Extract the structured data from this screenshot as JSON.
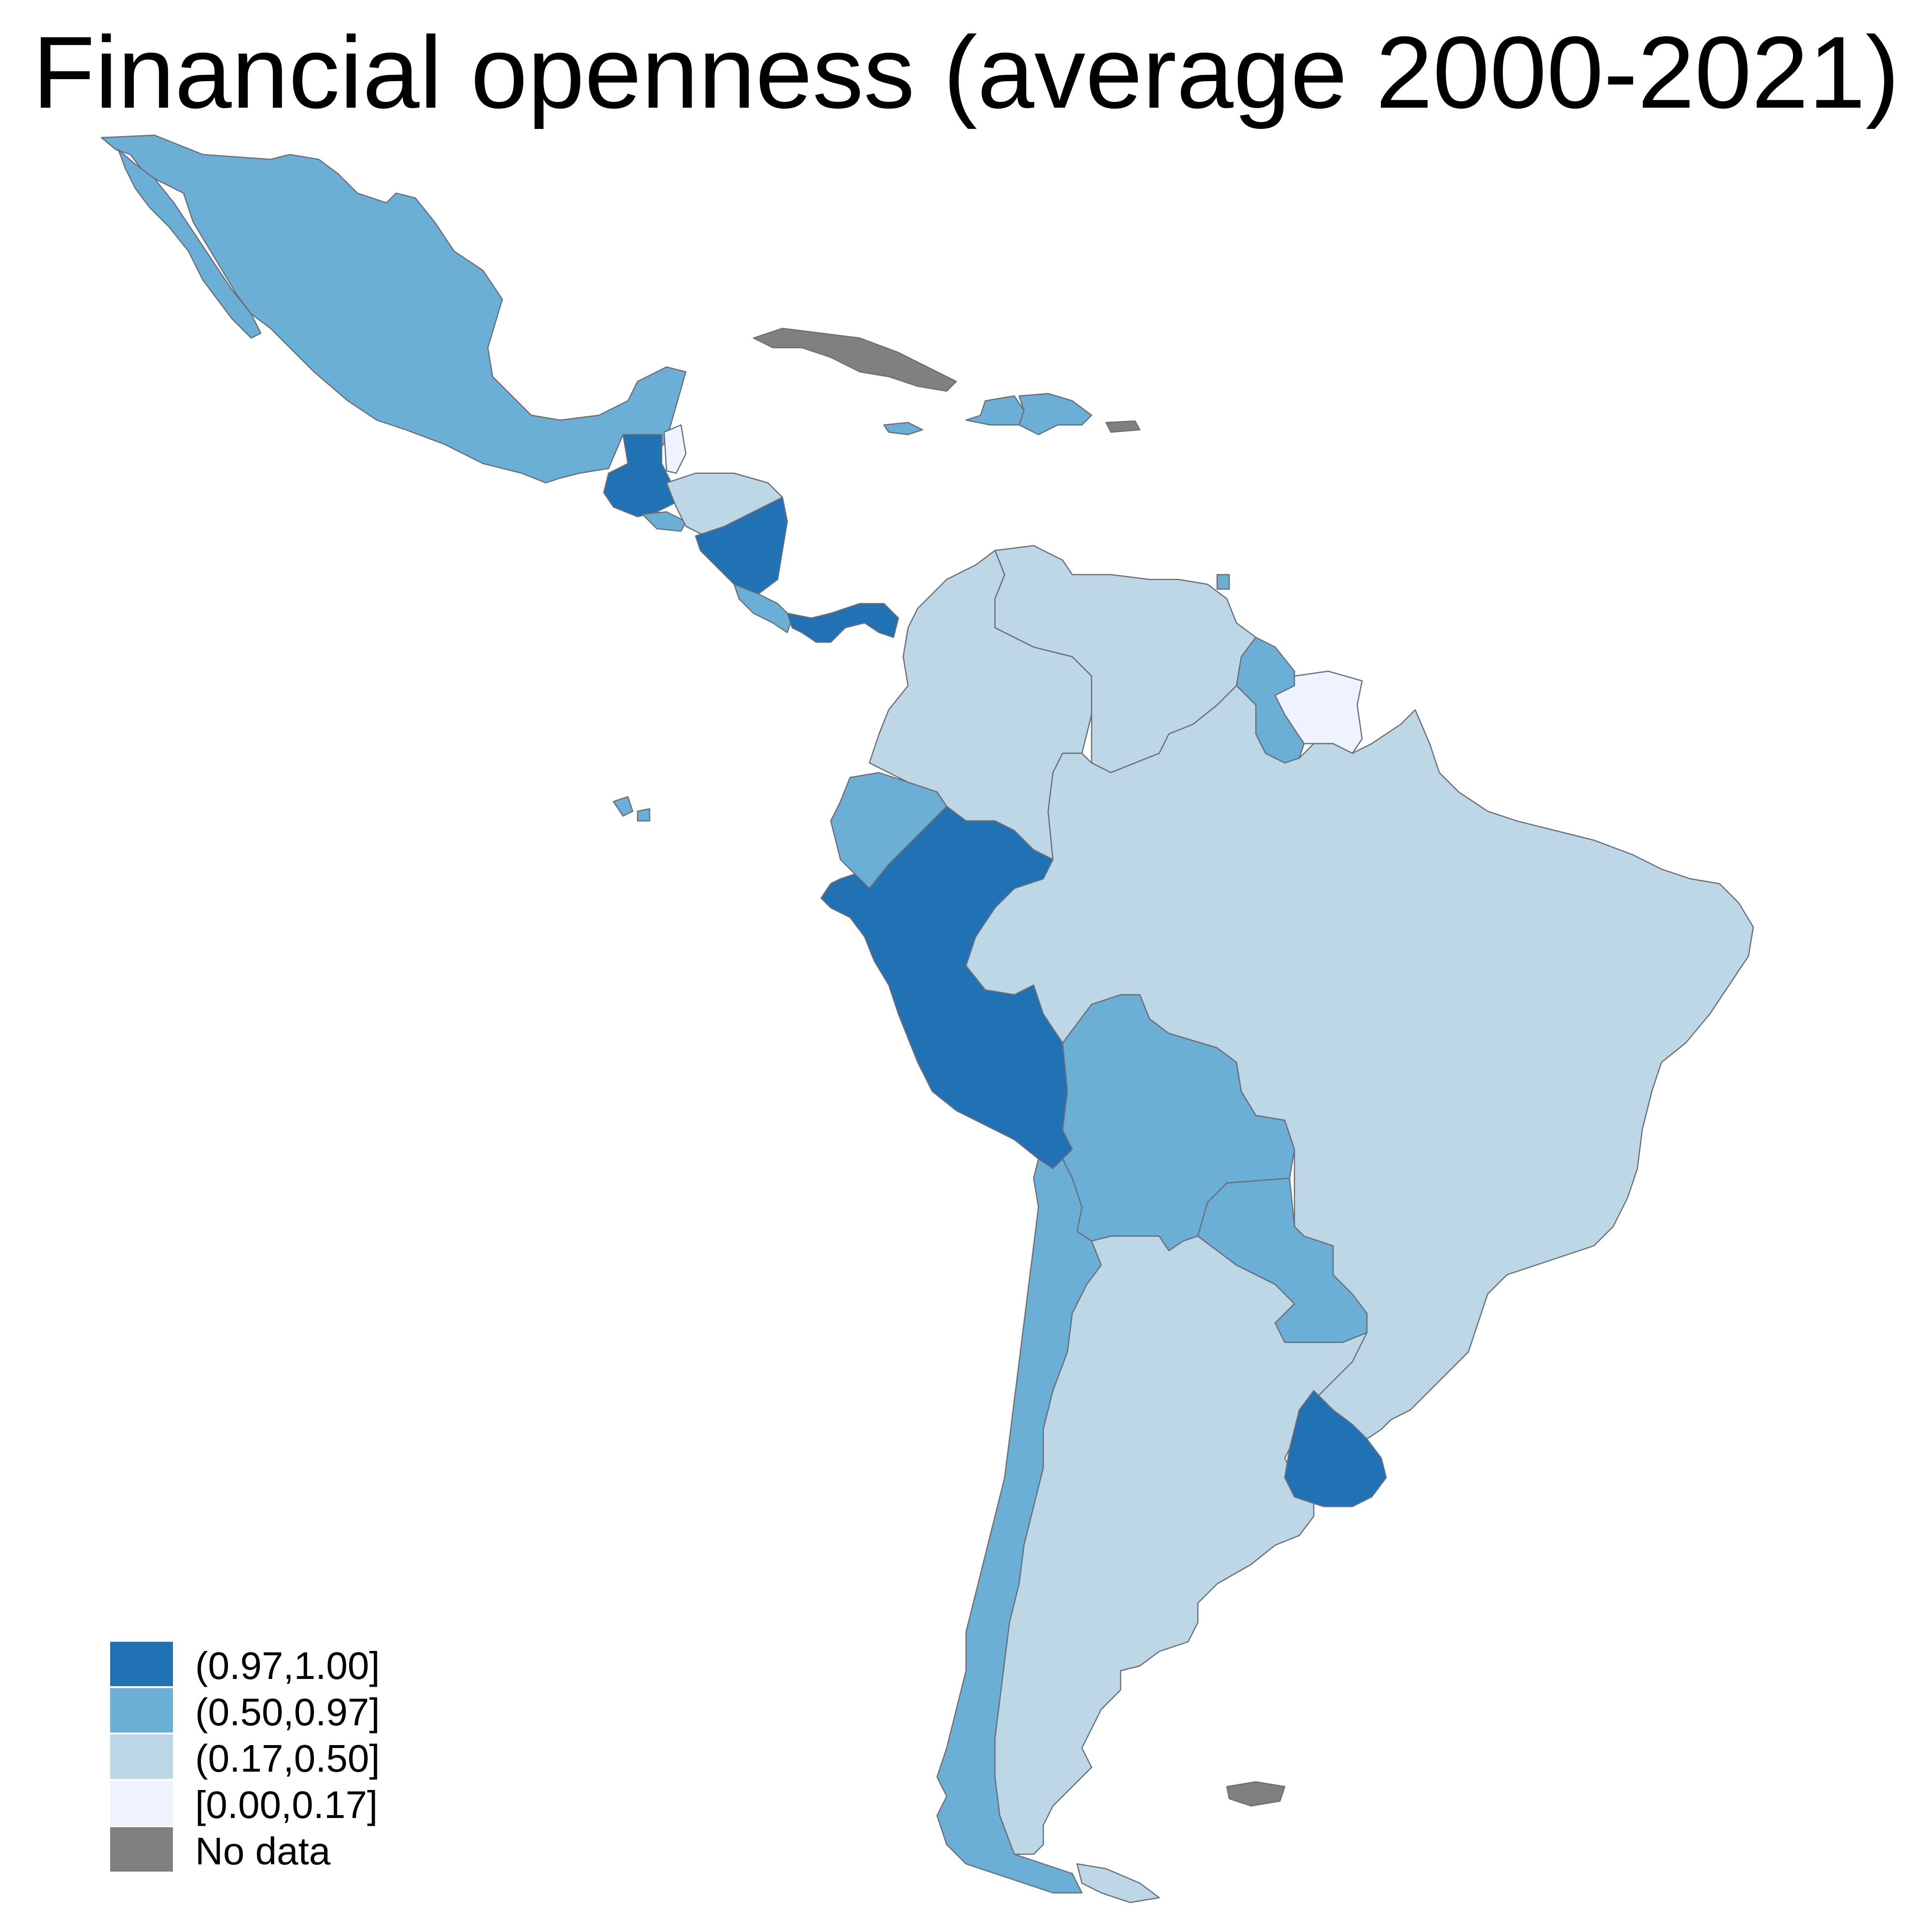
{
  "title": "Financial openness (average 2000-2021)",
  "colors": {
    "b4": "#2171b5",
    "b3": "#6baed6",
    "b2": "#bdd7e7",
    "b1": "#eff3ff",
    "na": "#808080"
  },
  "legend": [
    {
      "label": "(0.97,1.00]",
      "color": "#2171b5"
    },
    {
      "label": "(0.50,0.97]",
      "color": "#6baed6"
    },
    {
      "label": "(0.17,0.50]",
      "color": "#bdd7e7"
    },
    {
      "label": "[0.00,0.17]",
      "color": "#eff3ff"
    },
    {
      "label": "No data",
      "color": "#808080"
    }
  ]
}
